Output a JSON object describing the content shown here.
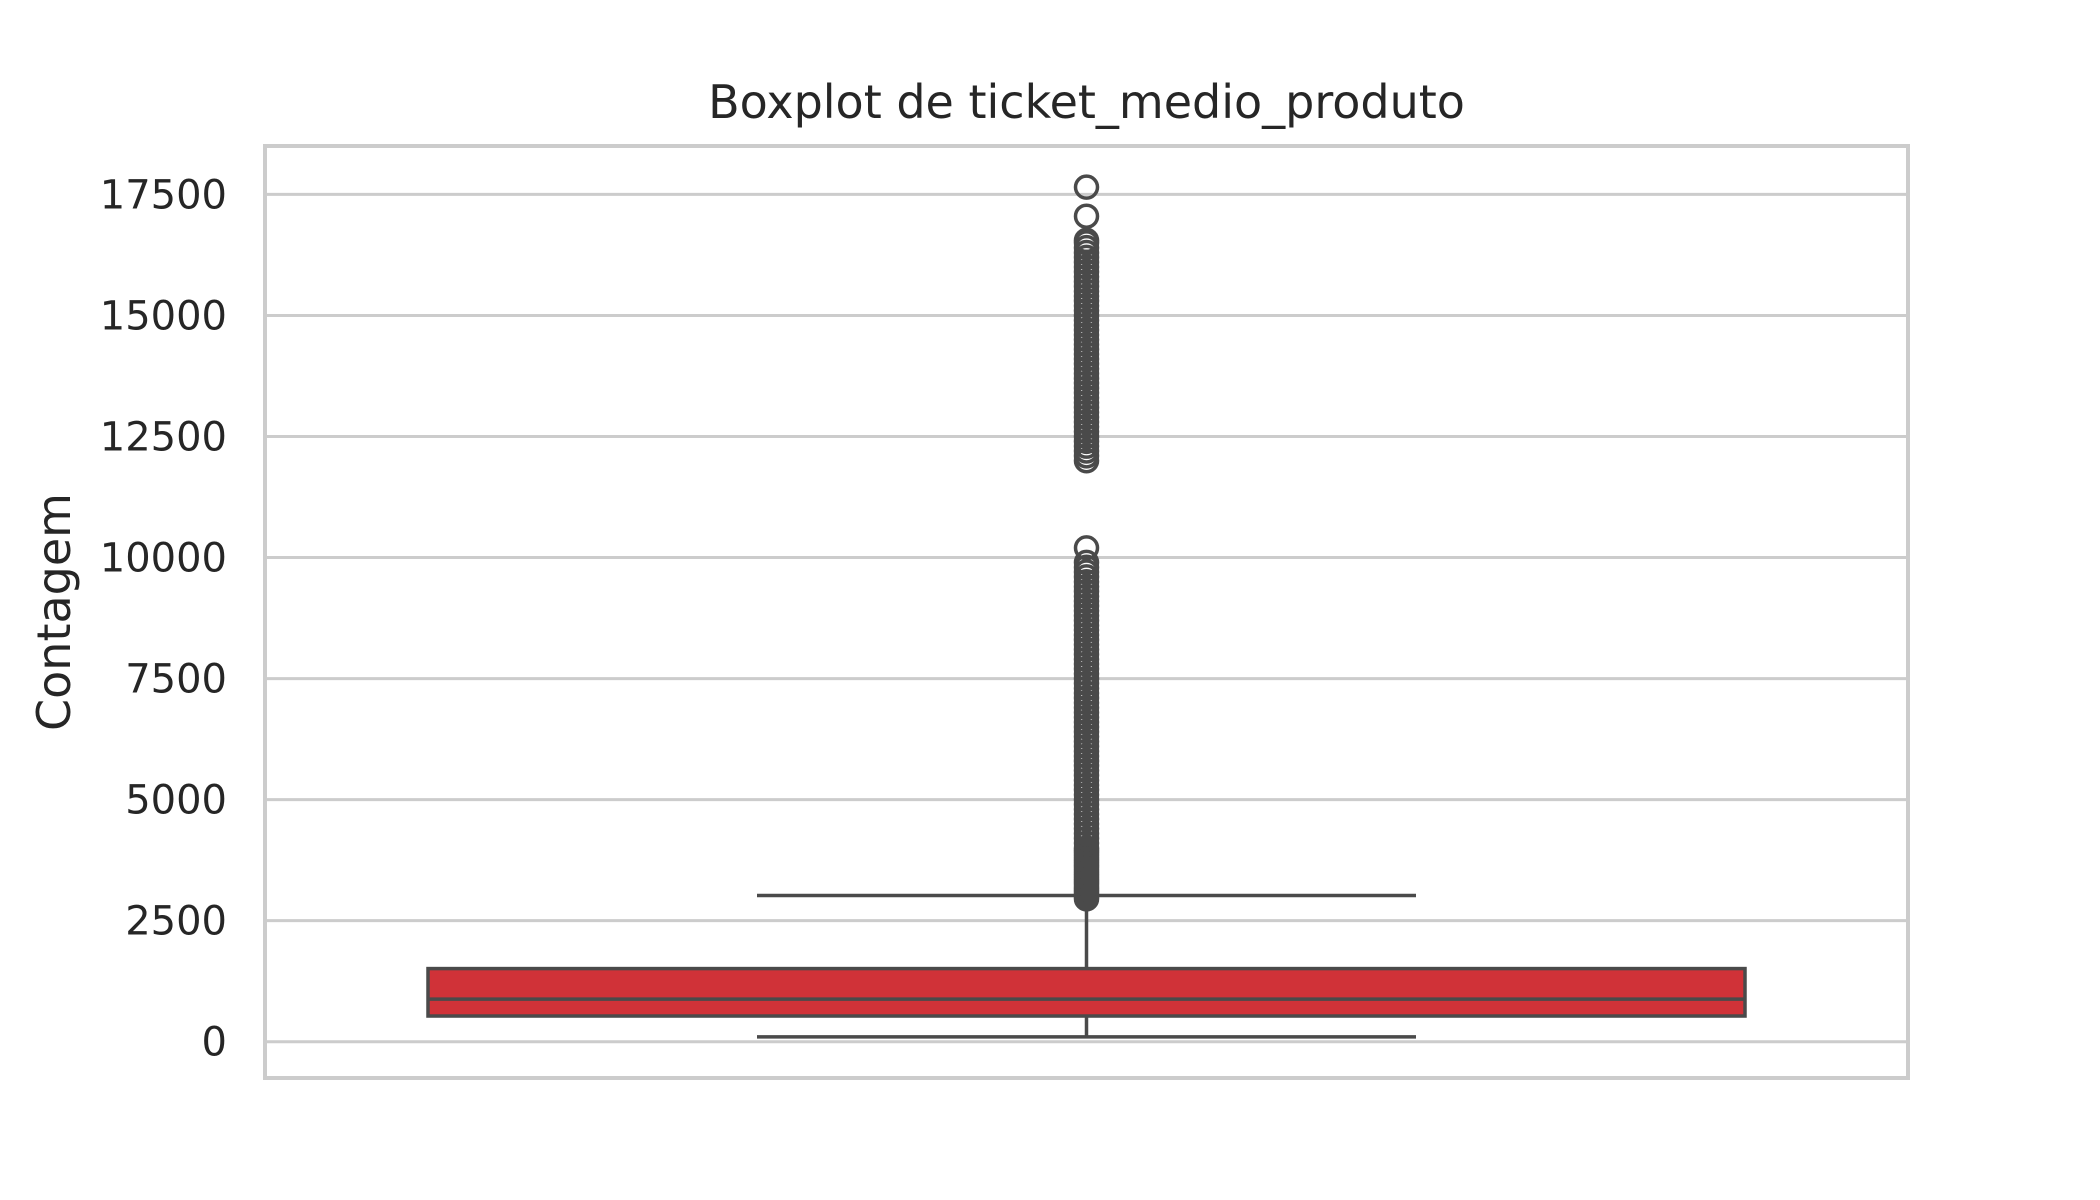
{
  "chart_data": {
    "type": "boxplot",
    "title": "Boxplot de ticket_medio_produto",
    "xlabel": "",
    "ylabel": "Contagem",
    "ylim": [
      -750,
      18500
    ],
    "yticks": [
      0,
      2500,
      5000,
      7500,
      10000,
      12500,
      15000,
      17500
    ],
    "grid": true,
    "box": {
      "whisker_low": 100,
      "q1": 530,
      "median": 880,
      "q3": 1510,
      "whisker_high": 3020
    },
    "outliers": [
      2950,
      3000,
      3050,
      3100,
      3150,
      3200,
      3250,
      3300,
      3350,
      3400,
      3450,
      3500,
      3550,
      3600,
      3650,
      3700,
      3750,
      3800,
      3850,
      3900,
      3950,
      4000,
      4100,
      4200,
      4300,
      4400,
      4500,
      4600,
      4700,
      4800,
      4900,
      5000,
      5100,
      5200,
      5300,
      5400,
      5500,
      5600,
      5700,
      5800,
      5900,
      6000,
      6100,
      6200,
      6300,
      6400,
      6500,
      6600,
      6700,
      6800,
      6900,
      7000,
      7100,
      7200,
      7300,
      7400,
      7500,
      7600,
      7700,
      7800,
      7900,
      8000,
      8100,
      8200,
      8300,
      8400,
      8500,
      8600,
      8700,
      8800,
      8900,
      9000,
      9100,
      9200,
      9300,
      9400,
      9500,
      9600,
      9700,
      9800,
      9900,
      10200,
      12000,
      12100,
      12200,
      12300,
      12400,
      12500,
      12600,
      12700,
      12800,
      12900,
      13000,
      13100,
      13200,
      13300,
      13400,
      13500,
      13600,
      13700,
      13800,
      13900,
      14000,
      14100,
      14200,
      14300,
      14400,
      14500,
      14600,
      14700,
      14800,
      14900,
      15000,
      15100,
      15200,
      15300,
      15400,
      15500,
      15600,
      15700,
      15800,
      15900,
      16000,
      16100,
      16200,
      16300,
      16400,
      16500,
      16550,
      17050,
      17650
    ],
    "colors": {
      "box_fill": "#d03238",
      "line": "#4a4a4a",
      "grid": "#cccccc",
      "frame": "#cccccc",
      "text": "#262626"
    }
  }
}
